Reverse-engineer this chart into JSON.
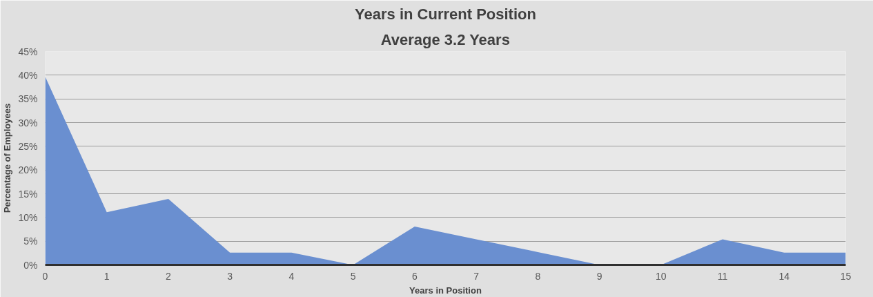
{
  "chart_data": {
    "type": "area",
    "title": "Years in Current Position",
    "subtitle": "Average 3.2 Years",
    "xlabel": "Years in Position",
    "ylabel": "Percentage of Employees",
    "categories": [
      "0",
      "1",
      "2",
      "3",
      "4",
      "5",
      "6",
      "7",
      "8",
      "9",
      "10",
      "11",
      "14",
      "15"
    ],
    "series": [
      {
        "color": "#6a8fd0",
        "values": [
          39.7,
          11.1,
          13.9,
          2.6,
          2.6,
          0,
          8.1,
          5.4,
          2.7,
          0,
          0,
          5.4,
          2.6,
          2.6
        ]
      }
    ],
    "ylim": [
      0,
      45
    ],
    "yticks": [
      {
        "value": 0,
        "label": "0%"
      },
      {
        "value": 5,
        "label": "5%"
      },
      {
        "value": 10,
        "label": "10%"
      },
      {
        "value": 15,
        "label": "15%"
      },
      {
        "value": 20,
        "label": "20%"
      },
      {
        "value": 25,
        "label": "25%"
      },
      {
        "value": 30,
        "label": "30%"
      },
      {
        "value": 35,
        "label": "35%"
      },
      {
        "value": 40,
        "label": "40%"
      },
      {
        "value": 45,
        "label": "45%"
      }
    ],
    "grid": "y"
  }
}
